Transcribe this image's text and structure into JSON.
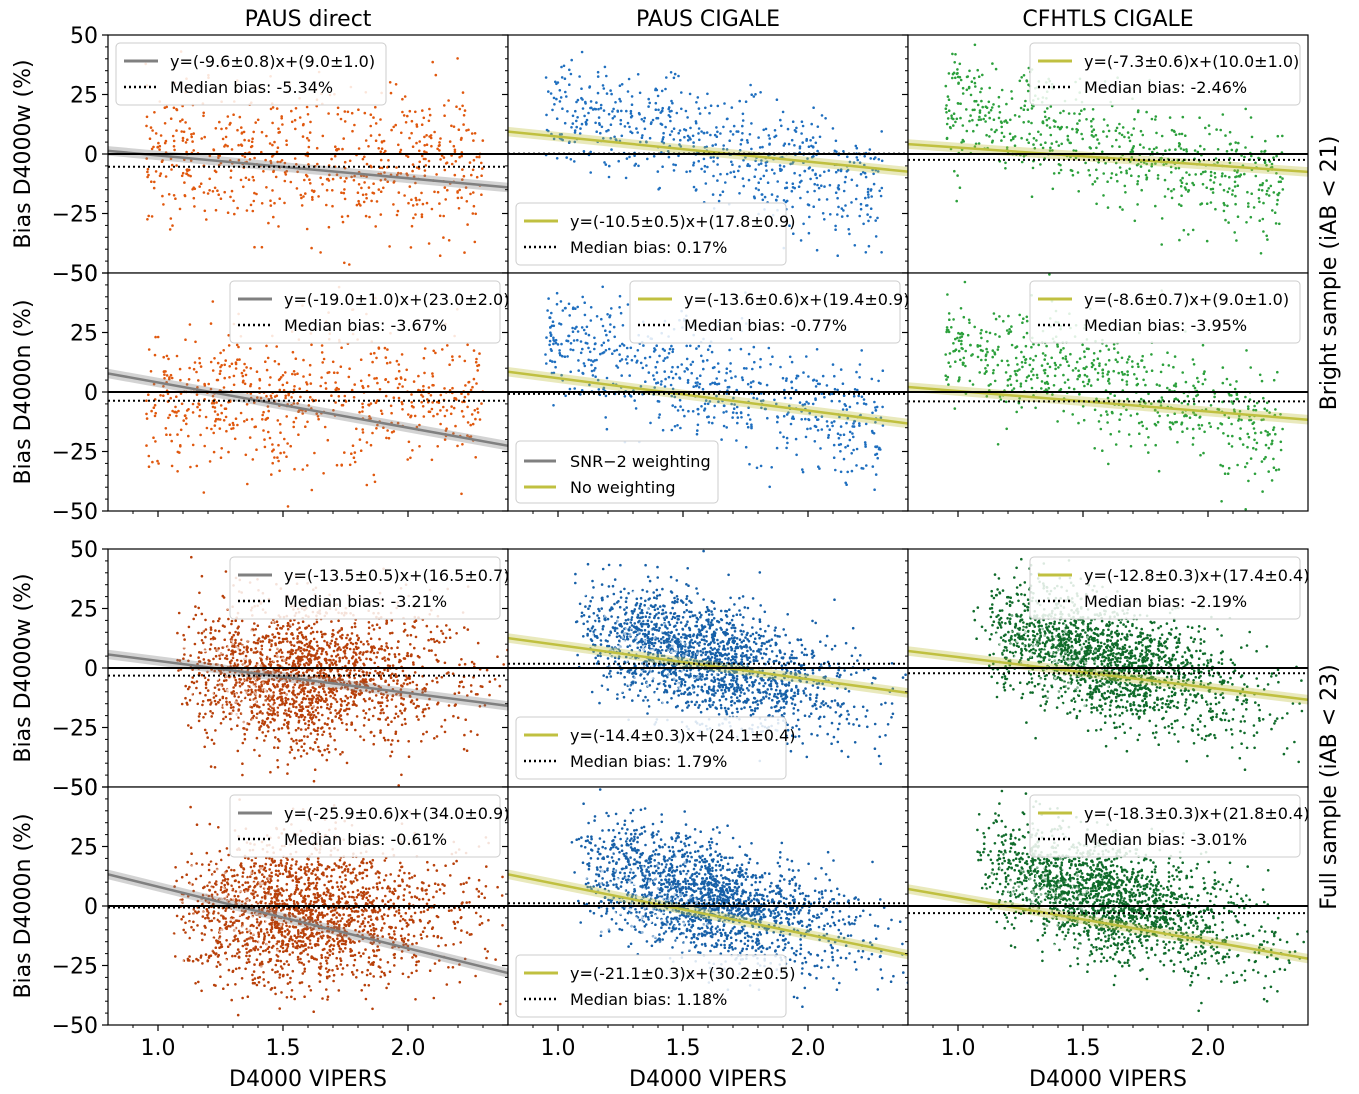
{
  "figure": {
    "col_titles": [
      "PAUS direct",
      "PAUS CIGALE",
      "CFHTLS CIGALE"
    ],
    "row_group_labels": {
      "bright": "Bright sample (iAB < 21)",
      "full": "Full sample (iAB < 23)"
    },
    "ylabels": [
      "Bias D4000w (%)",
      "Bias D4000n (%)",
      "Bias D4000w (%)",
      "Bias D4000n (%)"
    ],
    "xlabel": "D4000 VIPERS",
    "extra_legend": [
      {
        "label": "SNR−2 weighting",
        "color": "#808080"
      },
      {
        "label": "No weighting",
        "color": "#c0c040"
      }
    ]
  },
  "chart_data": [
    {
      "type": "scatter",
      "panel": "bright-w / PAUS direct",
      "fit_label": "y=(-9.6±0.8)x+(9.0±1.0)",
      "slope": -9.6,
      "intercept": 9.0,
      "median_bias": -5.34,
      "median_label": "Median bias: -5.34%",
      "cloud": "flat",
      "color": "#e0580e",
      "legend_pos": "top-left",
      "xlim": [
        0.8,
        2.4
      ],
      "ylim": [
        -50,
        50
      ],
      "xticks": [
        1.0,
        1.5,
        2.0
      ],
      "yticks": [
        -50,
        -25,
        0,
        25,
        50
      ],
      "fit_color": "#808080"
    },
    {
      "type": "scatter",
      "panel": "bright-w / PAUS CIGALE",
      "fit_label": "y=(-10.5±0.5)x+(17.8±0.9)",
      "slope": -10.5,
      "intercept": 17.8,
      "median_bias": 0.17,
      "median_label": "Median bias: 0.17%",
      "cloud": "neg",
      "color": "#1f6fbf",
      "legend_pos": "bottom-left",
      "xlim": [
        0.8,
        2.4
      ],
      "ylim": [
        -50,
        50
      ],
      "fit_color": "#c0c040"
    },
    {
      "type": "scatter",
      "panel": "bright-w / CFHTLS CIGALE",
      "fit_label": "y=(-7.3±0.6)x+(10.0±1.0)",
      "slope": -7.3,
      "intercept": 10.0,
      "median_bias": -2.46,
      "median_label": "Median bias: -2.46%",
      "cloud": "neg",
      "color": "#2ca03c",
      "legend_pos": "top-right",
      "xlim": [
        0.8,
        2.4
      ],
      "ylim": [
        -50,
        50
      ],
      "fit_color": "#c0c040"
    },
    {
      "type": "scatter",
      "panel": "bright-n / PAUS direct",
      "fit_label": "y=(-19.0±1.0)x+(23.0±2.0)",
      "slope": -19.0,
      "intercept": 23.0,
      "median_bias": -3.67,
      "median_label": "Median bias: -3.67%",
      "cloud": "flat",
      "color": "#e0580e",
      "legend_pos": "top-right",
      "xlim": [
        0.8,
        2.4
      ],
      "ylim": [
        -50,
        50
      ],
      "fit_color": "#808080"
    },
    {
      "type": "scatter",
      "panel": "bright-n / PAUS CIGALE",
      "fit_label": "y=(-13.6±0.6)x+(19.4±0.9)",
      "slope": -13.6,
      "intercept": 19.4,
      "median_bias": -0.77,
      "median_label": "Median bias: -0.77%",
      "cloud": "neg",
      "color": "#1f6fbf",
      "legend_pos": "top-right",
      "xlim": [
        0.8,
        2.4
      ],
      "ylim": [
        -50,
        50
      ],
      "fit_color": "#c0c040"
    },
    {
      "type": "scatter",
      "panel": "bright-n / CFHTLS CIGALE",
      "fit_label": "y=(-8.6±0.7)x+(9.0±1.0)",
      "slope": -8.6,
      "intercept": 9.0,
      "median_bias": -3.95,
      "median_label": "Median bias: -3.95%",
      "cloud": "neg",
      "color": "#2ca03c",
      "legend_pos": "top-right",
      "xlim": [
        0.8,
        2.4
      ],
      "ylim": [
        -50,
        50
      ],
      "fit_color": "#c0c040"
    },
    {
      "type": "scatter",
      "panel": "full-w / PAUS direct",
      "fit_label": "y=(-13.5±0.5)x+(16.5±0.7)",
      "slope": -13.5,
      "intercept": 16.5,
      "median_bias": -3.21,
      "median_label": "Median bias: -3.21%",
      "cloud": "dense-flat",
      "color": "#b8400a",
      "legend_pos": "top-right",
      "xlim": [
        0.8,
        2.4
      ],
      "ylim": [
        -50,
        50
      ],
      "fit_color": "#808080"
    },
    {
      "type": "scatter",
      "panel": "full-w / PAUS CIGALE",
      "fit_label": "y=(-14.4±0.3)x+(24.1±0.4)",
      "slope": -14.4,
      "intercept": 24.1,
      "median_bias": 1.79,
      "median_label": "Median bias: 1.79%",
      "cloud": "dense-neg",
      "color": "#1760a8",
      "legend_pos": "bottom-left",
      "xlim": [
        0.8,
        2.4
      ],
      "ylim": [
        -50,
        50
      ],
      "fit_color": "#c0c040"
    },
    {
      "type": "scatter",
      "panel": "full-w / CFHTLS CIGALE",
      "fit_label": "y=(-12.8±0.3)x+(17.4±0.4)",
      "slope": -12.8,
      "intercept": 17.4,
      "median_bias": -2.19,
      "median_label": "Median bias: -2.19%",
      "cloud": "dense-neg",
      "color": "#0f6b2a",
      "legend_pos": "top-right",
      "xlim": [
        0.8,
        2.4
      ],
      "ylim": [
        -50,
        50
      ],
      "fit_color": "#c0c040"
    },
    {
      "type": "scatter",
      "panel": "full-n / PAUS direct",
      "fit_label": "y=(-25.9±0.6)x+(34.0±0.9)",
      "slope": -25.9,
      "intercept": 34.0,
      "median_bias": -0.61,
      "median_label": "Median bias: -0.61%",
      "cloud": "dense-flat",
      "color": "#b8400a",
      "legend_pos": "top-right",
      "xlim": [
        0.8,
        2.4
      ],
      "ylim": [
        -50,
        50
      ],
      "fit_color": "#808080"
    },
    {
      "type": "scatter",
      "panel": "full-n / PAUS CIGALE",
      "fit_label": "y=(-21.1±0.3)x+(30.2±0.5)",
      "slope": -21.1,
      "intercept": 30.2,
      "median_bias": 1.18,
      "median_label": "Median bias: 1.18%",
      "cloud": "dense-neg",
      "color": "#1760a8",
      "legend_pos": "bottom-left",
      "xlim": [
        0.8,
        2.4
      ],
      "ylim": [
        -50,
        50
      ],
      "fit_color": "#c0c040"
    },
    {
      "type": "scatter",
      "panel": "full-n / CFHTLS CIGALE",
      "fit_label": "y=(-18.3±0.3)x+(21.8±0.4)",
      "slope": -18.3,
      "intercept": 21.8,
      "median_bias": -3.01,
      "median_label": "Median bias: -3.01%",
      "cloud": "dense-neg",
      "color": "#0f6b2a",
      "legend_pos": "top-right",
      "xlim": [
        0.8,
        2.4
      ],
      "ylim": [
        -50,
        50
      ],
      "fit_color": "#c0c040"
    }
  ]
}
